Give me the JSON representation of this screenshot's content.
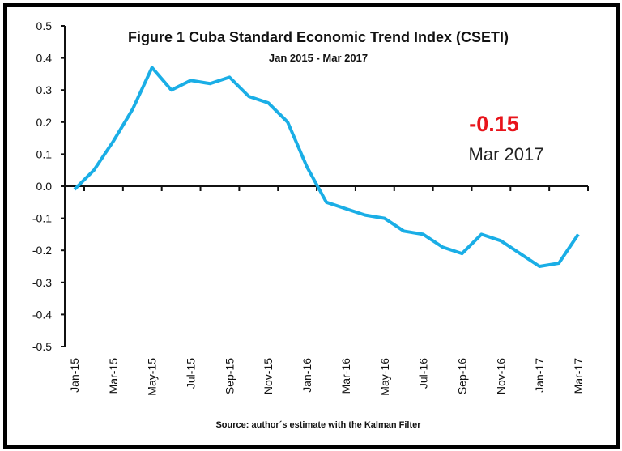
{
  "chart_data": {
    "type": "line",
    "title": "Figure 1 Cuba Standard Economic Trend Index (CSETI)",
    "subtitle": "Jan 2015 - Mar 2017",
    "source": "Source: author´s estimate with the Kalman Filter",
    "annotation": {
      "value": "-0.15",
      "label": "Mar 2017",
      "value_color": "#e8141b"
    },
    "ylim": [
      -0.5,
      0.5
    ],
    "yticks": [
      "0.5",
      "0.4",
      "0.3",
      "0.2",
      "0.1",
      "0.0",
      "-0.1",
      "-0.2",
      "-0.3",
      "-0.4",
      "-0.5"
    ],
    "x": [
      "Jan-15",
      "Feb-15",
      "Mar-15",
      "Apr-15",
      "May-15",
      "Jun-15",
      "Jul-15",
      "Aug-15",
      "Sep-15",
      "Oct-15",
      "Nov-15",
      "Dec-15",
      "Jan-16",
      "Feb-16",
      "Mar-16",
      "Apr-16",
      "May-16",
      "Jun-16",
      "Jul-16",
      "Aug-16",
      "Sep-16",
      "Oct-16",
      "Nov-16",
      "Dec-16",
      "Jan-17",
      "Feb-17",
      "Mar-17"
    ],
    "xtick_labels": [
      "Jan-15",
      "Mar-15",
      "May-15",
      "Jul-15",
      "Sep-15",
      "Nov-15",
      "Jan-16",
      "Mar-16",
      "May-16",
      "Jul-16",
      "Sep-16",
      "Nov-16",
      "Jan-17",
      "Mar-17"
    ],
    "series": [
      {
        "values": [
          -0.01,
          0.05,
          0.14,
          0.24,
          0.37,
          0.3,
          0.33,
          0.32,
          0.34,
          0.28,
          0.26,
          0.2,
          0.06,
          -0.05,
          -0.07,
          -0.09,
          -0.1,
          -0.14,
          -0.15,
          -0.19,
          -0.21,
          -0.15,
          -0.17,
          -0.21,
          -0.25,
          -0.24,
          -0.15
        ],
        "color": "#1aaee6"
      }
    ],
    "grid": false
  }
}
